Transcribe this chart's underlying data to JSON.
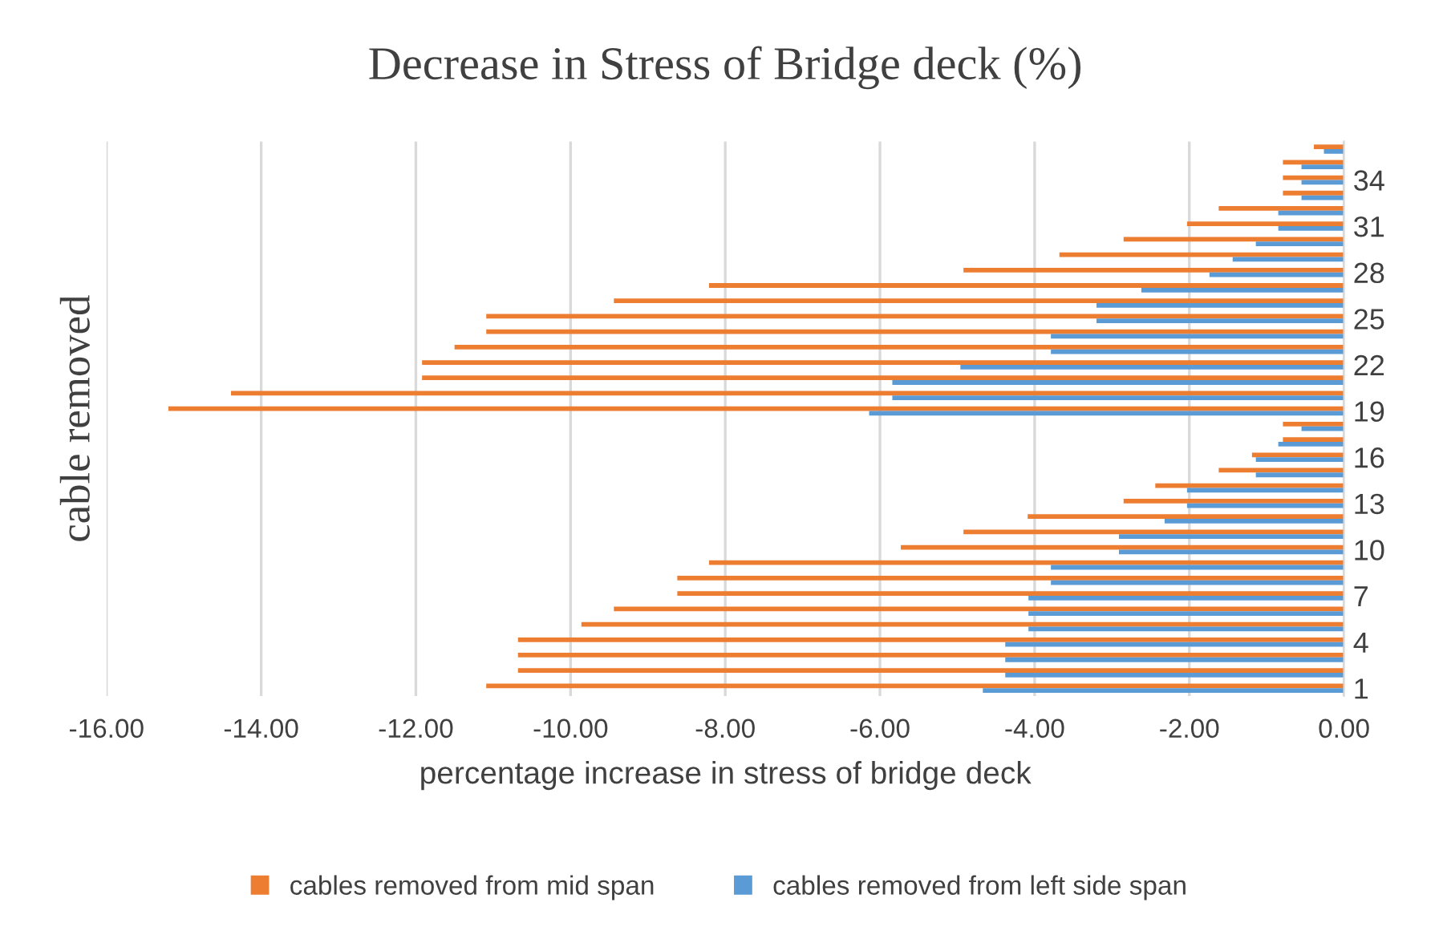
{
  "chart_data": {
    "type": "bar",
    "orientation": "horizontal",
    "title": "Decrease in Stress of Bridge deck (%)",
    "xlabel": "percentage increase in stress of bridge deck",
    "ylabel": "cable removed",
    "categories": [
      null,
      null,
      "34",
      null,
      null,
      "31",
      null,
      null,
      "28",
      null,
      null,
      "25",
      null,
      null,
      "22",
      null,
      null,
      "19",
      null,
      null,
      "16",
      null,
      null,
      "13",
      null,
      null,
      "10",
      null,
      null,
      "7",
      null,
      null,
      "4",
      null,
      null,
      "1"
    ],
    "series": [
      {
        "name": "cables removed from mid span",
        "color": "#ed7d31",
        "values": [
          -0.39,
          -0.79,
          -0.79,
          -0.79,
          -1.62,
          -2.03,
          -2.85,
          -3.68,
          -4.92,
          -8.21,
          -9.44,
          -11.09,
          -11.09,
          -11.5,
          -11.92,
          -11.92,
          -14.39,
          -15.2,
          -0.79,
          -0.79,
          -1.19,
          -1.62,
          -2.44,
          -2.85,
          -4.09,
          -4.92,
          -5.73,
          -8.21,
          -8.62,
          -8.62,
          -9.44,
          -9.86,
          -10.68,
          -10.68,
          -10.68,
          -11.09
        ]
      },
      {
        "name": "cables removed from left side span",
        "color": "#5b9bd5",
        "values": [
          -0.26,
          -0.55,
          -0.55,
          -0.55,
          -0.85,
          -0.85,
          -1.14,
          -1.44,
          -1.74,
          -2.62,
          -3.2,
          -3.2,
          -3.79,
          -3.79,
          -4.96,
          -5.84,
          -5.84,
          -6.14,
          -0.55,
          -0.85,
          -1.14,
          -1.14,
          -2.03,
          -2.03,
          -2.32,
          -2.91,
          -2.91,
          -3.79,
          -3.79,
          -4.08,
          -4.08,
          -4.08,
          -4.38,
          -4.38,
          -4.38,
          -4.67
        ]
      }
    ],
    "xlim": [
      -16,
      0
    ],
    "xticks": [
      {
        "value": -16,
        "label": "-16.00"
      },
      {
        "value": -14,
        "label": "-14.00"
      },
      {
        "value": -12,
        "label": "-12.00"
      },
      {
        "value": -10,
        "label": "-10.00"
      },
      {
        "value": -8,
        "label": "-8.00"
      },
      {
        "value": -6,
        "label": "-6.00"
      },
      {
        "value": -4,
        "label": "-4.00"
      },
      {
        "value": -2,
        "label": "-2.00"
      },
      {
        "value": 0,
        "label": "0.00"
      }
    ],
    "grid": "x",
    "legend": "bottom"
  }
}
